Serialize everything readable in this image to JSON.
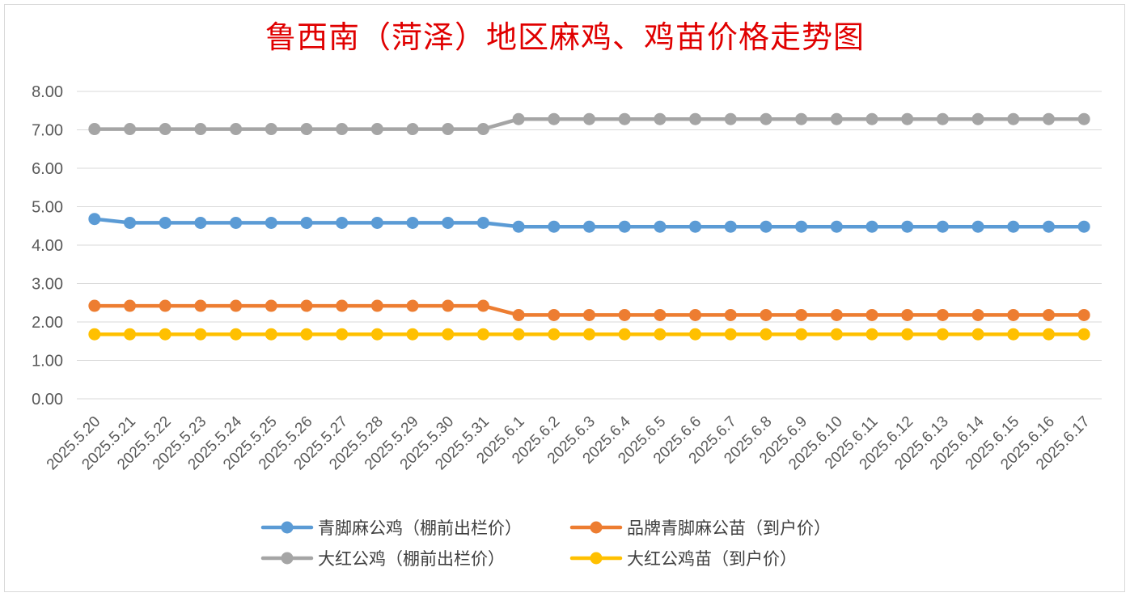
{
  "chart_data": {
    "type": "line",
    "title": "鲁西南（菏泽）地区麻鸡、鸡苗价格走势图",
    "xlabel": "",
    "ylabel": "",
    "ylim": [
      0,
      8
    ],
    "yticks": [
      "0.00",
      "1.00",
      "2.00",
      "3.00",
      "4.00",
      "5.00",
      "6.00",
      "7.00",
      "8.00"
    ],
    "grid": true,
    "legend_position": "bottom",
    "categories": [
      "2025.5.20",
      "2025.5.21",
      "2025.5.22",
      "2025.5.23",
      "2025.5.24",
      "2025.5.25",
      "2025.5.26",
      "2025.5.27",
      "2025.5.28",
      "2025.5.29",
      "2025.5.30",
      "2025.5.31",
      "2025.6.1",
      "2025.6.2",
      "2025.6.3",
      "2025.6.4",
      "2025.6.5",
      "2025.6.6",
      "2025.6.7",
      "2025.6.8",
      "2025.6.9",
      "2025.6.10",
      "2025.6.11",
      "2025.6.12",
      "2025.6.13",
      "2025.6.14",
      "2025.6.15",
      "2025.6.16",
      "2025.6.17"
    ],
    "series": [
      {
        "name": "青脚麻公鸡（棚前出栏价）",
        "color": "#5b9bd5",
        "values": [
          4.68,
          4.58,
          4.58,
          4.58,
          4.58,
          4.58,
          4.58,
          4.58,
          4.58,
          4.58,
          4.58,
          4.58,
          4.48,
          4.48,
          4.48,
          4.48,
          4.48,
          4.48,
          4.48,
          4.48,
          4.48,
          4.48,
          4.48,
          4.48,
          4.48,
          4.48,
          4.48,
          4.48,
          4.48
        ]
      },
      {
        "name": "品牌青脚麻公苗（到户价）",
        "color": "#ed7d31",
        "values": [
          2.42,
          2.42,
          2.42,
          2.42,
          2.42,
          2.42,
          2.42,
          2.42,
          2.42,
          2.42,
          2.42,
          2.42,
          2.18,
          2.18,
          2.18,
          2.18,
          2.18,
          2.18,
          2.18,
          2.18,
          2.18,
          2.18,
          2.18,
          2.18,
          2.18,
          2.18,
          2.18,
          2.18,
          2.18
        ]
      },
      {
        "name": "大红公鸡（棚前出栏价）",
        "color": "#a5a5a5",
        "values": [
          7.02,
          7.02,
          7.02,
          7.02,
          7.02,
          7.02,
          7.02,
          7.02,
          7.02,
          7.02,
          7.02,
          7.02,
          7.28,
          7.28,
          7.28,
          7.28,
          7.28,
          7.28,
          7.28,
          7.28,
          7.28,
          7.28,
          7.28,
          7.28,
          7.28,
          7.28,
          7.28,
          7.28,
          7.28
        ]
      },
      {
        "name": "大红公鸡苗（到户价）",
        "color": "#ffc000",
        "values": [
          1.68,
          1.68,
          1.68,
          1.68,
          1.68,
          1.68,
          1.68,
          1.68,
          1.68,
          1.68,
          1.68,
          1.68,
          1.68,
          1.68,
          1.68,
          1.68,
          1.68,
          1.68,
          1.68,
          1.68,
          1.68,
          1.68,
          1.68,
          1.68,
          1.68,
          1.68,
          1.68,
          1.68,
          1.68
        ]
      }
    ]
  }
}
